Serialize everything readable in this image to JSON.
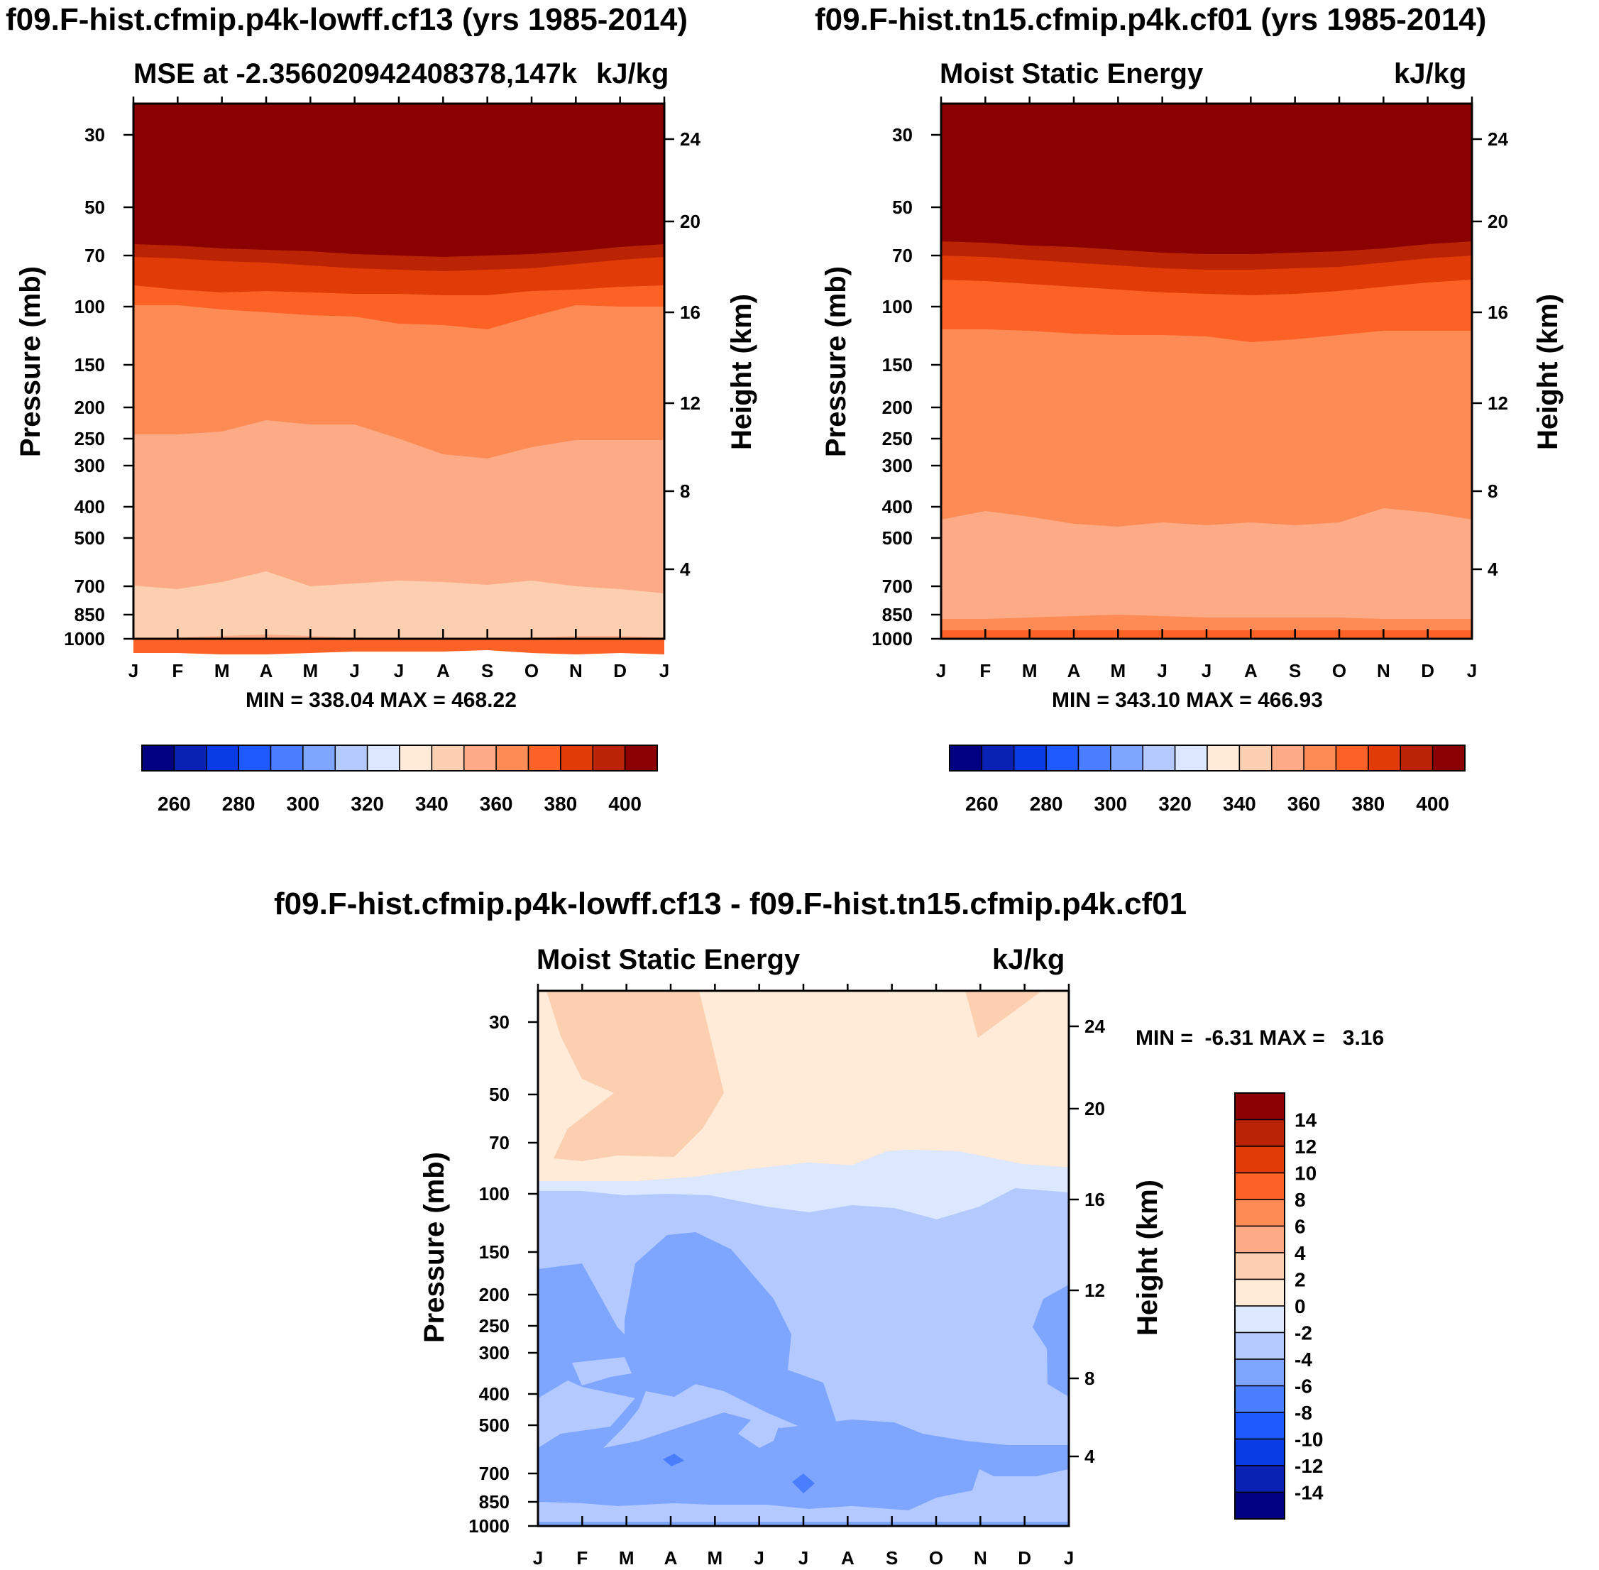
{
  "chart_data": [
    {
      "type": "heatmap",
      "title": "f09.F-hist.cfmip.p4k-lowff.cf13 (yrs 1985-2014)",
      "subtitle_left": "MSE at -2.356020942408378,147k",
      "subtitle_right": "kJ/kg",
      "xlabel": "",
      "ylabel": "Pressure (mb)",
      "ylabel_right": "Height (km)",
      "x_ticks": [
        "J",
        "F",
        "M",
        "A",
        "M",
        "J",
        "J",
        "A",
        "S",
        "O",
        "N",
        "D",
        "J"
      ],
      "y_ticks": [
        "30",
        "50",
        "70",
        "100",
        "150",
        "200",
        "250",
        "300",
        "400",
        "500",
        "700",
        "850",
        "1000"
      ],
      "y2_ticks": [
        "24",
        "20",
        "16",
        "12",
        "8",
        "4"
      ],
      "min_max_text": "MIN = 338.04 MAX = 468.22",
      "min": 338.04,
      "max": 468.22,
      "colorbar_ticks": [
        "260",
        "280",
        "300",
        "320",
        "340",
        "360",
        "380",
        "400"
      ],
      "colorbar_levels": [
        255,
        260,
        265,
        270,
        275,
        280,
        285,
        290,
        295,
        300,
        305,
        310,
        315,
        320,
        325,
        330,
        335,
        340,
        345,
        350,
        355,
        360,
        365,
        370,
        375,
        380,
        385,
        390,
        395,
        400,
        405
      ],
      "bands_bottom_to_top": [
        {
          "level": 370,
          "boundary": [
            920,
            920,
            922,
            922,
            920,
            918,
            918,
            918,
            916,
            920,
            922,
            920,
            922
          ]
        },
        {
          "level": 350,
          "boundary": [
            900,
            898,
            896,
            894,
            896,
            898,
            900,
            900,
            900,
            898,
            896,
            896,
            898
          ]
        },
        {
          "level": 340,
          "boundary": [
            825,
            830,
            820,
            805,
            826,
            822,
            818,
            820,
            824,
            818,
            826,
            830,
            836
          ]
        },
        {
          "level": 350,
          "boundary": [
            612,
            612,
            608,
            592,
            598,
            598,
            618,
            640,
            646,
            630,
            620,
            620,
            620
          ]
        },
        {
          "level": 360,
          "boundary": [
            430,
            430,
            436,
            440,
            444,
            446,
            456,
            458,
            464,
            446,
            430,
            432,
            432
          ]
        },
        {
          "level": 370,
          "boundary": [
            402,
            408,
            412,
            410,
            412,
            414,
            414,
            416,
            416,
            410,
            408,
            404,
            402
          ]
        },
        {
          "level": 380,
          "boundary": [
            362,
            364,
            368,
            370,
            374,
            378,
            380,
            382,
            380,
            378,
            372,
            366,
            362
          ]
        },
        {
          "level": 390,
          "boundary": [
            344,
            346,
            350,
            352,
            354,
            358,
            360,
            362,
            360,
            358,
            354,
            348,
            344
          ]
        },
        {
          "level": 400,
          "boundary": [
            322,
            324,
            328,
            330,
            334,
            338,
            340,
            340,
            338,
            336,
            332,
            326,
            322
          ]
        }
      ]
    },
    {
      "type": "heatmap",
      "title": "f09.F-hist.tn15.cfmip.p4k.cf01 (yrs 1985-2014)",
      "subtitle_left": "Moist Static Energy",
      "subtitle_right": "kJ/kg",
      "xlabel": "",
      "ylabel": "Pressure (mb)",
      "ylabel_right": "Height (km)",
      "x_ticks": [
        "J",
        "F",
        "M",
        "A",
        "M",
        "J",
        "J",
        "A",
        "S",
        "O",
        "N",
        "D",
        "J"
      ],
      "y_ticks": [
        "30",
        "50",
        "70",
        "100",
        "150",
        "200",
        "250",
        "300",
        "400",
        "500",
        "700",
        "850",
        "1000"
      ],
      "y2_ticks": [
        "24",
        "20",
        "16",
        "12",
        "8",
        "4"
      ],
      "min_max_text": "MIN = 343.10 MAX = 466.93",
      "min": 343.1,
      "max": 466.93,
      "colorbar_ticks": [
        "260",
        "280",
        "300",
        "320",
        "340",
        "360",
        "380",
        "400"
      ],
      "colorbar_levels": [
        255,
        260,
        265,
        270,
        275,
        280,
        285,
        290,
        295,
        300,
        305,
        310,
        315,
        320,
        325,
        330,
        335,
        340,
        345,
        350,
        355,
        360,
        365,
        370,
        375,
        380,
        385,
        390,
        395,
        400,
        405
      ],
      "bands_bottom_to_top": [
        {
          "level": 370,
          "boundary": [
            888,
            888,
            888,
            888,
            888,
            888,
            888,
            888,
            888,
            888,
            888,
            888,
            888
          ]
        },
        {
          "level": 360,
          "boundary": [
            872,
            872,
            870,
            868,
            866,
            868,
            870,
            870,
            870,
            870,
            872,
            872,
            872
          ]
        },
        {
          "level": 350,
          "boundary": [
            732,
            720,
            728,
            738,
            742,
            736,
            740,
            736,
            740,
            736,
            716,
            722,
            732
          ]
        },
        {
          "level": 360,
          "boundary": [
            464,
            464,
            466,
            470,
            472,
            472,
            474,
            482,
            478,
            472,
            466,
            466,
            466
          ]
        },
        {
          "level": 370,
          "boundary": [
            394,
            396,
            400,
            404,
            408,
            412,
            414,
            416,
            414,
            410,
            404,
            398,
            394
          ]
        },
        {
          "level": 380,
          "boundary": [
            360,
            362,
            366,
            370,
            374,
            378,
            380,
            380,
            378,
            376,
            370,
            364,
            360
          ]
        },
        {
          "level": 390,
          "boundary": [
            340,
            342,
            346,
            348,
            352,
            356,
            358,
            358,
            356,
            354,
            350,
            344,
            340
          ]
        },
        {
          "level": 400,
          "boundary": [
            318,
            320,
            324,
            326,
            330,
            334,
            336,
            336,
            334,
            332,
            328,
            322,
            318
          ]
        }
      ]
    },
    {
      "type": "heatmap",
      "title": "f09.F-hist.cfmip.p4k-lowff.cf13 - f09.F-hist.tn15.cfmip.p4k.cf01",
      "subtitle_left": "Moist Static Energy",
      "subtitle_right": "kJ/kg",
      "xlabel": "",
      "ylabel": "Pressure (mb)",
      "ylabel_right": "Height (km)",
      "x_ticks": [
        "J",
        "F",
        "M",
        "A",
        "M",
        "J",
        "J",
        "A",
        "S",
        "O",
        "N",
        "D",
        "J"
      ],
      "y_ticks": [
        "30",
        "50",
        "70",
        "100",
        "150",
        "200",
        "250",
        "300",
        "400",
        "500",
        "700",
        "850",
        "1000"
      ],
      "y2_ticks": [
        "24",
        "20",
        "16",
        "12",
        "8",
        "4"
      ],
      "min_max_text": "MIN =  -6.31 MAX =   3.16",
      "min": -6.31,
      "max": 3.16,
      "colorbar_ticks": [
        "14",
        "12",
        "10",
        "8",
        "6",
        "4",
        "2",
        "0",
        "-2",
        "-4",
        "-6",
        "-8",
        "-10",
        "-12",
        "-14"
      ],
      "colorbar_levels": [
        -15,
        -14,
        -12,
        -10,
        -8,
        -6,
        -4,
        -2,
        0,
        2,
        4,
        6,
        8,
        10,
        12,
        14,
        15
      ]
    }
  ]
}
